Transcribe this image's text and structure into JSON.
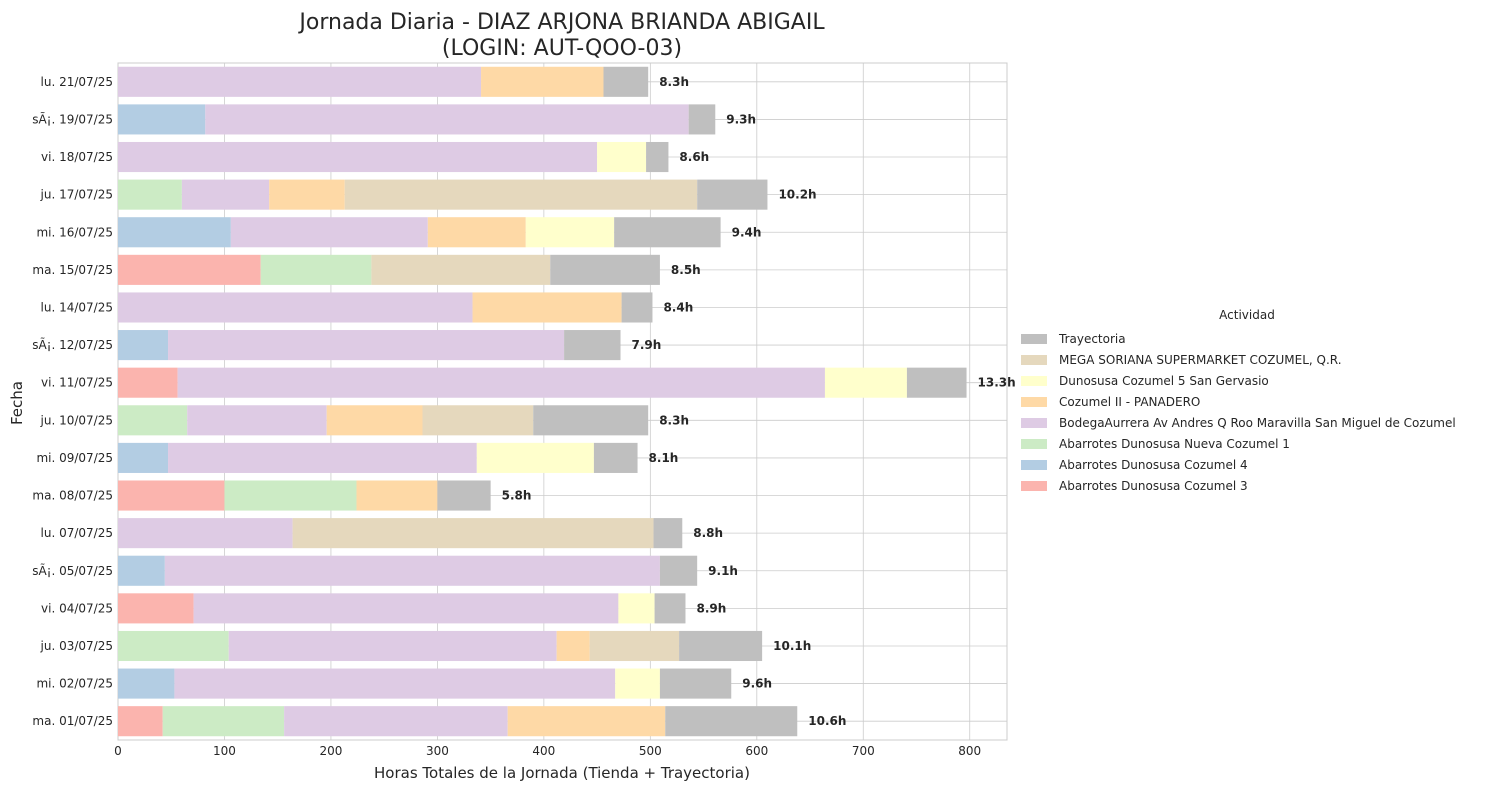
{
  "chart_data": {
    "type": "bar",
    "orientation": "horizontal",
    "stacked": true,
    "title": "Jornada Diaria - DIAZ ARJONA BRIANDA ABIGAIL",
    "subtitle": "(LOGIN: AUT-QOO-03)",
    "xlabel": "Horas Totales de la Jornada (Tienda + Trayectoria)",
    "ylabel": "Fecha",
    "xlim": [
      0,
      835
    ],
    "xticks": [
      0,
      100,
      200,
      300,
      400,
      500,
      600,
      700,
      800
    ],
    "grid": true,
    "legend_title": "Actividad",
    "legend_position": "right",
    "stack_order": [
      "Abarrotes Dunosusa Cozumel 3",
      "Abarrotes Dunosusa Nueva Cozumel 1",
      "Abarrotes Dunosusa Cozumel 4",
      "BodegaAurrera Av Andres Q Roo Maravilla San Miguel de Cozumel",
      "Cozumel II - PANADERO",
      "Dunosusa Cozumel 5 San Gervasio",
      "MEGA SORIANA SUPERMARKET COZUMEL, Q.R.",
      "Trayectoria"
    ],
    "legend_order": [
      "Trayectoria",
      "MEGA SORIANA SUPERMARKET COZUMEL, Q.R.",
      "Dunosusa Cozumel 5 San Gervasio",
      "Cozumel II - PANADERO",
      "BodegaAurrera Av Andres Q Roo Maravilla San Miguel de Cozumel",
      "Abarrotes Dunosusa Nueva Cozumel 1",
      "Abarrotes Dunosusa Cozumel 4",
      "Abarrotes Dunosusa Cozumel 3"
    ],
    "colors": {
      "Trayectoria": "#bfbfbf",
      "MEGA SORIANA SUPERMARKET COZUMEL, Q.R.": "#e5d8bd",
      "Dunosusa Cozumel 5 San Gervasio": "#ffffcc",
      "Cozumel II - PANADERO": "#fed9a6",
      "BodegaAurrera Av Andres Q Roo Maravilla San Miguel de Cozumel": "#decbe4",
      "Abarrotes Dunosusa Nueva Cozumel 1": "#ccebc5",
      "Abarrotes Dunosusa Cozumel 4": "#b3cde3",
      "Abarrotes Dunosusa Cozumel 3": "#fbb4ae"
    },
    "categories": [
      "lu. 21/07/25",
      "sÃ¡. 19/07/25",
      "vi. 18/07/25",
      "ju. 17/07/25",
      "mi. 16/07/25",
      "ma. 15/07/25",
      "lu. 14/07/25",
      "sÃ¡. 12/07/25",
      "vi. 11/07/25",
      "ju. 10/07/25",
      "mi. 09/07/25",
      "ma. 08/07/25",
      "lu. 07/07/25",
      "sÃ¡. 05/07/25",
      "vi. 04/07/25",
      "ju. 03/07/25",
      "mi. 02/07/25",
      "ma. 01/07/25"
    ],
    "series": [
      {
        "name": "Abarrotes Dunosusa Cozumel 3",
        "values": [
          0,
          0,
          0,
          0,
          0,
          134,
          0,
          0,
          56,
          0,
          0,
          100,
          0,
          0,
          71,
          0,
          0,
          42
        ]
      },
      {
        "name": "Abarrotes Dunosusa Nueva Cozumel 1",
        "values": [
          0,
          0,
          0,
          60,
          0,
          104,
          0,
          0,
          0,
          65,
          0,
          124,
          0,
          0,
          0,
          104,
          0,
          114
        ]
      },
      {
        "name": "Abarrotes Dunosusa Cozumel 4",
        "values": [
          0,
          82,
          0,
          0,
          106,
          0,
          0,
          47,
          0,
          0,
          47,
          0,
          0,
          44,
          0,
          0,
          53,
          0
        ]
      },
      {
        "name": "BodegaAurrera Av Andres Q Roo Maravilla San Miguel de Cozumel",
        "values": [
          341,
          454,
          450,
          82,
          185,
          0,
          333,
          372,
          608,
          131,
          290,
          0,
          164,
          465,
          399,
          308,
          414,
          210
        ]
      },
      {
        "name": "Cozumel II - PANADERO",
        "values": [
          115,
          0,
          0,
          71,
          92,
          0,
          140,
          0,
          0,
          90,
          0,
          76,
          0,
          0,
          0,
          31,
          0,
          148
        ]
      },
      {
        "name": "Dunosusa Cozumel 5 San Gervasio",
        "values": [
          0,
          0,
          46,
          0,
          83,
          0,
          0,
          0,
          77,
          0,
          110,
          0,
          0,
          0,
          34,
          0,
          42,
          0
        ]
      },
      {
        "name": "MEGA SORIANA SUPERMARKET COZUMEL, Q.R.",
        "values": [
          0,
          0,
          0,
          331,
          0,
          168,
          0,
          0,
          0,
          104,
          0,
          0,
          339,
          0,
          0,
          84,
          0,
          0
        ]
      },
      {
        "name": "Trayectoria",
        "values": [
          42,
          25,
          21,
          66,
          100,
          103,
          29,
          53,
          56,
          108,
          41,
          50,
          27,
          35,
          29,
          78,
          67,
          124
        ]
      }
    ],
    "data_labels": [
      "8.3h",
      "9.3h",
      "8.6h",
      "10.2h",
      "9.4h",
      "8.5h",
      "8.4h",
      "7.9h",
      "13.3h",
      "8.3h",
      "8.1h",
      "5.8h",
      "8.8h",
      "9.1h",
      "8.9h",
      "10.1h",
      "9.6h",
      "10.6h"
    ]
  }
}
